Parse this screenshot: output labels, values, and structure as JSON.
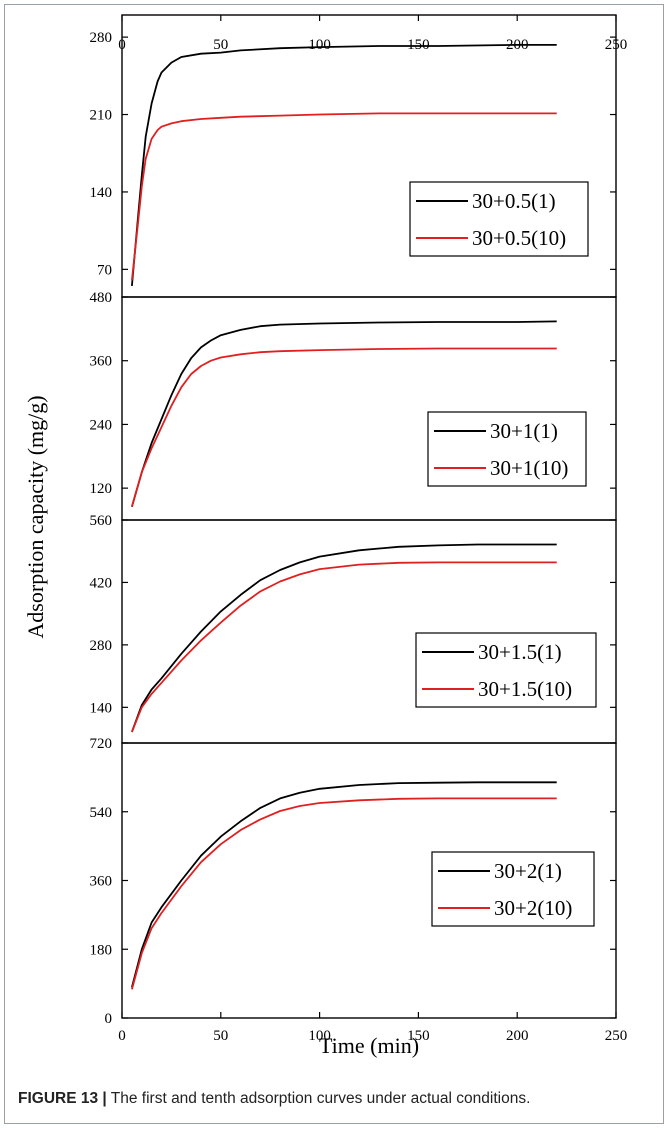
{
  "caption": {
    "label": "FIGURE 13 |",
    "text": " The first and tenth adsorption curves under actual conditions."
  },
  "colors": {
    "series_1": "#000000",
    "series_10": "#e02020",
    "axis": "#000000"
  },
  "chart_data": {
    "type": "line",
    "xlabel": "Time (min)",
    "ylabel": "Adsorption capacity (mg/g)",
    "xlim": [
      0,
      250
    ],
    "xticks": [
      0,
      50,
      100,
      150,
      200,
      250
    ],
    "grid": false,
    "legend_placement": "right",
    "panels": [
      {
        "ylim": [
          45,
          300
        ],
        "yticks": [
          70,
          140,
          210,
          280
        ],
        "series": [
          {
            "name": "30+0.5(1)",
            "x": [
              5,
              8,
              10,
              12,
              15,
              18,
              20,
              25,
              30,
              40,
              50,
              60,
              80,
              100,
              130,
              160,
              200,
              220
            ],
            "y": [
              55,
              115,
              155,
              190,
              220,
              240,
              248,
              257,
              262,
              265,
              266,
              268,
              270,
              271,
              272,
              272,
              273,
              273
            ]
          },
          {
            "name": "30+0.5(10)",
            "x": [
              5,
              8,
              10,
              12,
              15,
              18,
              20,
              25,
              30,
              40,
              50,
              60,
              80,
              100,
              130,
              160,
              200,
              220
            ],
            "y": [
              60,
              110,
              145,
              170,
              188,
              196,
              199,
              202,
              204,
              206,
              207,
              208,
              209,
              210,
              211,
              211,
              211,
              211
            ]
          }
        ]
      },
      {
        "ylim": [
          60,
          480
        ],
        "yticks": [
          120,
          240,
          360,
          480
        ],
        "series": [
          {
            "name": "30+1(1)",
            "x": [
              5,
              10,
              15,
              20,
              25,
              30,
              35,
              40,
              45,
              50,
              60,
              70,
              80,
              100,
              130,
              160,
              200,
              220
            ],
            "y": [
              85,
              150,
              205,
              250,
              295,
              335,
              365,
              385,
              398,
              408,
              418,
              425,
              428,
              430,
              432,
              433,
              433,
              434
            ]
          },
          {
            "name": "30+1(10)",
            "x": [
              5,
              10,
              15,
              20,
              25,
              30,
              35,
              40,
              45,
              50,
              60,
              70,
              80,
              100,
              130,
              160,
              200,
              220
            ],
            "y": [
              85,
              150,
              195,
              235,
              275,
              310,
              335,
              350,
              360,
              366,
              372,
              376,
              378,
              380,
              382,
              383,
              383,
              383
            ]
          }
        ]
      },
      {
        "ylim": [
          60,
          560
        ],
        "yticks": [
          140,
          280,
          420,
          560
        ],
        "series": [
          {
            "name": "30+1.5(1)",
            "x": [
              5,
              10,
              15,
              20,
              30,
              40,
              50,
              60,
              70,
              80,
              90,
              100,
              120,
              140,
              160,
              180,
              200,
              220
            ],
            "y": [
              85,
              145,
              180,
              205,
              260,
              310,
              355,
              392,
              425,
              448,
              465,
              478,
              492,
              500,
              503,
              505,
              505,
              505
            ]
          },
          {
            "name": "30+1.5(10)",
            "x": [
              5,
              10,
              15,
              20,
              30,
              40,
              50,
              60,
              70,
              80,
              90,
              100,
              120,
              140,
              160,
              180,
              200,
              220
            ],
            "y": [
              85,
              140,
              170,
              195,
              245,
              290,
              330,
              368,
              400,
              422,
              438,
              450,
              460,
              464,
              465,
              465,
              465,
              465
            ]
          }
        ]
      },
      {
        "ylim": [
          0,
          720
        ],
        "yticks": [
          0,
          180,
          360,
          540,
          720
        ],
        "series": [
          {
            "name": "30+2(1)",
            "x": [
              5,
              10,
              15,
              20,
              30,
              40,
              50,
              60,
              70,
              80,
              90,
              100,
              120,
              140,
              160,
              180,
              200,
              220
            ],
            "y": [
              80,
              180,
              250,
              290,
              360,
              425,
              475,
              515,
              550,
              575,
              590,
              600,
              610,
              615,
              616,
              617,
              617,
              617
            ]
          },
          {
            "name": "30+2(10)",
            "x": [
              5,
              10,
              15,
              20,
              30,
              40,
              50,
              60,
              70,
              80,
              90,
              100,
              120,
              140,
              160,
              180,
              200,
              220
            ],
            "y": [
              75,
              170,
              235,
              275,
              345,
              408,
              455,
              492,
              520,
              542,
              555,
              563,
              570,
              574,
              575,
              575,
              575,
              575
            ]
          }
        ]
      }
    ]
  }
}
